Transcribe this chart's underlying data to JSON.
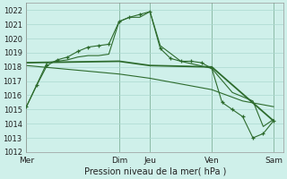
{
  "xlabel": "Pression niveau de la mer( hPa )",
  "background_color": "#cff0ea",
  "grid_color": "#aad8d0",
  "line_color": "#2d6b2d",
  "ylim": [
    1012,
    1022.5
  ],
  "yticks": [
    1012,
    1013,
    1014,
    1015,
    1016,
    1017,
    1018,
    1019,
    1020,
    1021,
    1022
  ],
  "day_labels": [
    "Mer",
    "Dim",
    "Jeu",
    "Ven",
    "Sam"
  ],
  "day_positions": [
    0,
    9,
    12,
    18,
    24
  ],
  "xmax": 25,
  "line1_x": [
    0,
    1,
    2,
    3,
    4,
    5,
    6,
    7,
    8,
    9,
    10,
    11,
    12,
    13,
    14,
    15,
    16,
    17,
    18,
    19,
    20,
    21,
    22,
    23,
    24
  ],
  "line1_y": [
    1015.2,
    1016.7,
    1018.1,
    1018.5,
    1018.7,
    1019.1,
    1019.4,
    1019.5,
    1019.6,
    1021.2,
    1021.5,
    1021.7,
    1021.9,
    1019.3,
    1018.6,
    1018.4,
    1018.4,
    1018.3,
    1017.9,
    1015.5,
    1015.0,
    1014.5,
    1013.0,
    1013.3,
    1014.2
  ],
  "line2_x": [
    0,
    2,
    4,
    5,
    6,
    7,
    8,
    9,
    10,
    11,
    12,
    13,
    15,
    18,
    20,
    22,
    23,
    24
  ],
  "line2_y": [
    1015.2,
    1018.3,
    1018.5,
    1018.7,
    1018.8,
    1018.8,
    1018.9,
    1021.2,
    1021.5,
    1021.5,
    1021.9,
    1019.5,
    1018.4,
    1017.9,
    1016.2,
    1015.6,
    1013.8,
    1014.3
  ],
  "line3_x": [
    0,
    9,
    12,
    18,
    24
  ],
  "line3_y": [
    1018.3,
    1018.4,
    1018.1,
    1018.0,
    1014.2
  ],
  "line4_x": [
    0,
    3,
    6,
    9,
    12,
    15,
    18,
    21,
    24
  ],
  "line4_y": [
    1018.1,
    1017.9,
    1017.7,
    1017.5,
    1017.2,
    1016.8,
    1016.4,
    1015.6,
    1015.2
  ]
}
